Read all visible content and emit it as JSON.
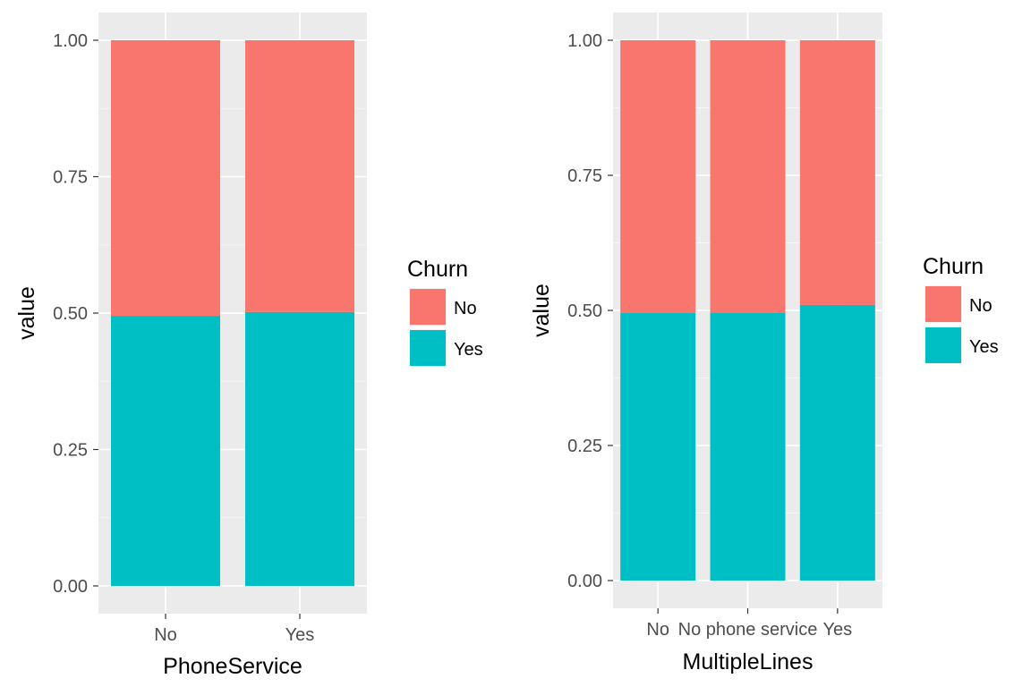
{
  "colors": {
    "panel_bg": "#EBEBEB",
    "grid_major": "#FFFFFF",
    "grid_minor": "#F5F5F5",
    "tick_text": "#4D4D4D",
    "label_text": "#000000",
    "churn_no": "#F8766D",
    "churn_yes": "#00BFC4"
  },
  "chart_data": [
    {
      "type": "bar",
      "stacked": true,
      "xlabel": "PhoneService",
      "ylabel": "value",
      "ylim": [
        0,
        1
      ],
      "yticks": [
        "0.00",
        "0.25",
        "0.50",
        "0.75",
        "1.00"
      ],
      "ytick_values": [
        0,
        0.25,
        0.5,
        0.75,
        1.0
      ],
      "categories": [
        "No",
        "Yes"
      ],
      "series": [
        {
          "name": "Yes",
          "values": [
            0.495,
            0.502
          ]
        },
        {
          "name": "No",
          "values": [
            0.505,
            0.498
          ]
        }
      ],
      "legend": {
        "title": "Churn",
        "entries": [
          "No",
          "Yes"
        ],
        "placement": "right"
      },
      "grid": true
    },
    {
      "type": "bar",
      "stacked": true,
      "xlabel": "MultipleLines",
      "ylabel": "value",
      "ylim": [
        0,
        1
      ],
      "yticks": [
        "0.00",
        "0.25",
        "0.50",
        "0.75",
        "1.00"
      ],
      "ytick_values": [
        0,
        0.25,
        0.5,
        0.75,
        1.0
      ],
      "categories": [
        "No",
        "No phone service",
        "Yes"
      ],
      "series": [
        {
          "name": "Yes",
          "values": [
            0.495,
            0.495,
            0.51
          ]
        },
        {
          "name": "No",
          "values": [
            0.505,
            0.505,
            0.49
          ]
        }
      ],
      "legend": {
        "title": "Churn",
        "entries": [
          "No",
          "Yes"
        ],
        "placement": "right"
      },
      "grid": true
    }
  ]
}
